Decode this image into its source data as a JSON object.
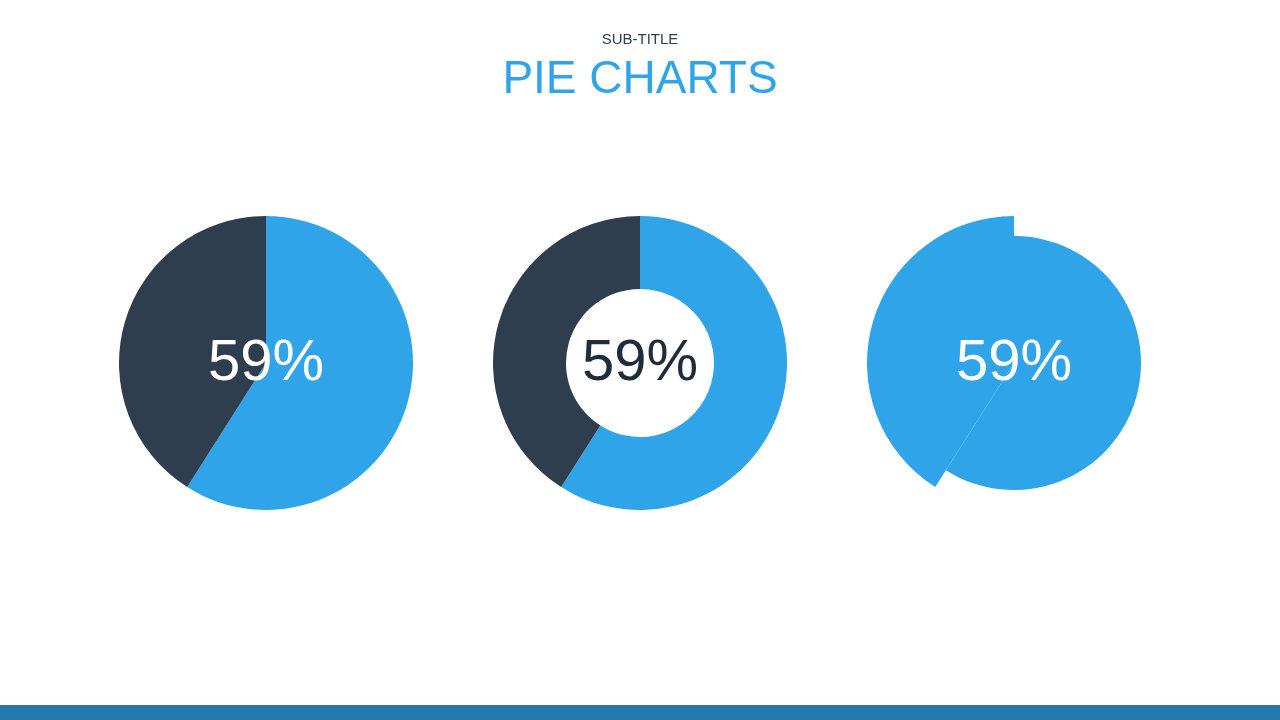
{
  "chart_data": [
    {
      "type": "other",
      "title": "PIE CHARTS",
      "subtitle": "SUB-TITLE"
    },
    {
      "type": "pie",
      "categories": [
        null,
        null
      ],
      "values": [
        59,
        41
      ],
      "colors": [
        "#30a4e8",
        "#2e3e4f"
      ],
      "value_labels": [
        "59%",
        null
      ]
    },
    {
      "type": "donut",
      "categories": [
        null,
        null
      ],
      "values": [
        59,
        41
      ],
      "colors": [
        "#30a4e8",
        "#2e3e4f"
      ],
      "value_labels": [
        "59%",
        null
      ]
    },
    {
      "type": "pie",
      "categories": [
        null,
        null
      ],
      "values": [
        59,
        41
      ],
      "colors": [
        "#30a4e8",
        "#30a4e8"
      ],
      "value_labels": [
        "59%",
        null
      ]
    }
  ]
}
